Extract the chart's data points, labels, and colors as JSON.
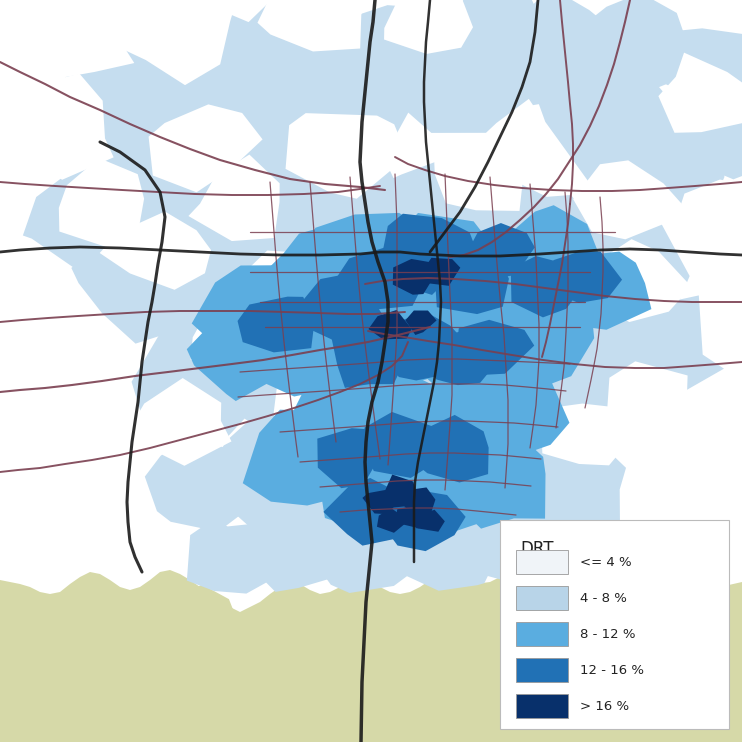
{
  "legend_title": "DRT",
  "legend_labels": [
    "<= 4 %",
    "4 - 8 %",
    "8 - 12 %",
    "12 - 16 %",
    "> 16 %"
  ],
  "legend_colors": [
    "#f0f4f8",
    "#b8d4e8",
    "#5aade0",
    "#2171b5",
    "#08306b"
  ],
  "bg_color": "#ffffff",
  "light_blue_zone": "#c5ddef",
  "med_blue_zone": "#5aade0",
  "dark_blue_zone": "#2171b5",
  "darkest_blue_zone": "#08306b",
  "olive_color": "#d6d9a8",
  "road_major": "#7a3f50",
  "road_highway": "#1a1a1a",
  "figsize": [
    7.42,
    7.42
  ],
  "dpi": 100
}
